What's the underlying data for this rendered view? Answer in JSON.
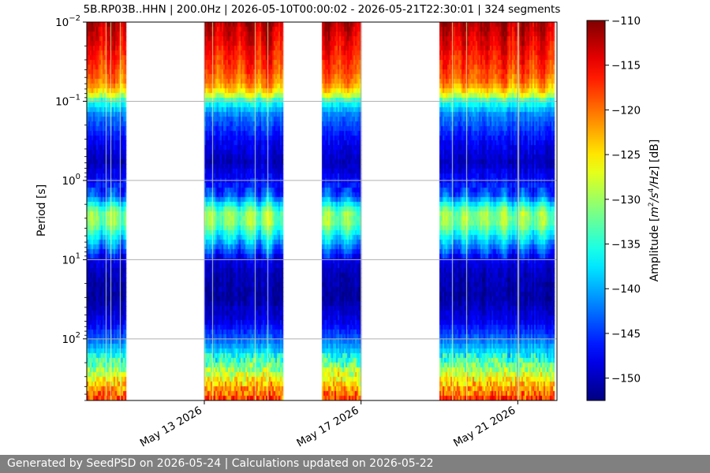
{
  "chart_data": {
    "type": "heatmap",
    "title": "5B.RP03B..HHN | 200.0Hz | 2026-05-10T00:00:02 - 2026-05-21T22:30:01 | 324 segments",
    "xlabel": "",
    "ylabel": "Period [s]",
    "x_axis": {
      "type": "date",
      "ticks": [
        "2026-05-13",
        "2026-05-17",
        "2026-05-21"
      ],
      "tick_labels": [
        "May 13 2026",
        "May 17 2026",
        "May 21 2026"
      ],
      "range": [
        "2026-05-10T00:00:00",
        "2026-05-22T00:00:00"
      ]
    },
    "y_axis": {
      "scale": "log",
      "inverted": true,
      "range": [
        0.01,
        600
      ],
      "ticks": [
        0.01,
        0.1,
        1,
        10,
        100
      ],
      "tick_labels": [
        {
          "base": "10",
          "exp": "−2"
        },
        {
          "base": "10",
          "exp": "−1"
        },
        {
          "base": "10",
          "exp": "0"
        },
        {
          "base": "10",
          "exp": "1"
        },
        {
          "base": "10",
          "exp": "2"
        }
      ]
    },
    "grid": true,
    "colormap": "jet",
    "colorbar": {
      "label": "Amplitude [m²/s⁴/Hz] [dB]",
      "label_parts": {
        "pre": "Amplitude [",
        "m": "m",
        "sup2": "2",
        "s": "/s",
        "sup4": "4",
        "hz": "/Hz",
        "post": "] [dB]"
      },
      "range": [
        -152.5,
        -110
      ],
      "ticks": [
        -150,
        -145,
        -140,
        -135,
        -130,
        -125,
        -120,
        -115,
        -110
      ],
      "tick_labels": [
        "−150",
        "−145",
        "−140",
        "−135",
        "−130",
        "−125",
        "−120",
        "−115",
        "−110"
      ]
    },
    "data_segments": [
      {
        "start": "2026-05-10T00:00:00",
        "end": "2026-05-11T00:00:00"
      },
      {
        "start": "2026-05-13T00:00:00",
        "end": "2026-05-15T00:00:00"
      },
      {
        "start": "2026-05-16T00:00:00",
        "end": "2026-05-17T00:00:00"
      },
      {
        "start": "2026-05-19T00:00:00",
        "end": "2026-05-21T22:30:00"
      }
    ],
    "segment_count": 324,
    "psd_profile_db": {
      "period_s": [
        0.01,
        0.02,
        0.04,
        0.06,
        0.08,
        0.1,
        0.15,
        0.3,
        0.6,
        1.5,
        2.5,
        3.5,
        7,
        10,
        15,
        30,
        60,
        100,
        200,
        350,
        600
      ],
      "amplitude_db": [
        -112,
        -115,
        -118,
        -121,
        -126,
        -135,
        -142,
        -147,
        -150,
        -144,
        -131,
        -131,
        -142,
        -148,
        -150,
        -151,
        -148,
        -143,
        -134,
        -125,
        -118
      ]
    }
  },
  "footer": {
    "text": "Generated by SeedPSD on 2026-05-24 | Calculations updated on 2026-05-22"
  }
}
